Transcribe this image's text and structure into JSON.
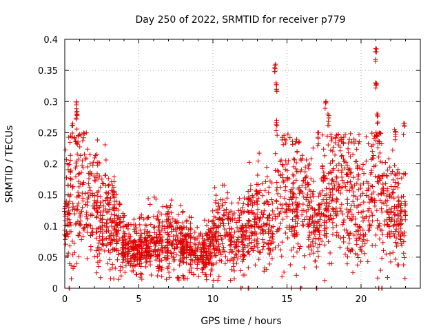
{
  "chart_data": {
    "type": "scatter",
    "title": "Day 250 of 2022, SRMTID for receiver p779",
    "xlabel": "GPS time / hours",
    "ylabel": "SRMTID / TECUs",
    "xlim": [
      0,
      24
    ],
    "ylim": [
      0,
      0.4
    ],
    "x_ticks": [
      0,
      5,
      10,
      15,
      20
    ],
    "y_ticks": [
      0,
      0.05,
      0.1,
      0.15,
      0.2,
      0.25,
      0.3,
      0.35,
      0.4
    ],
    "x_tick_labels": [
      "0",
      "5",
      "10",
      "15",
      "20"
    ],
    "y_tick_labels": [
      "0",
      "0.05",
      "0.1",
      "0.15",
      "0.2",
      "0.25",
      "0.3",
      "0.35",
      "0.4"
    ],
    "grid": true,
    "marker": "+",
    "color": "#dd0000",
    "trend": [
      [
        0.0,
        0.13
      ],
      [
        0.5,
        0.16
      ],
      [
        1.0,
        0.17
      ],
      [
        1.5,
        0.15
      ],
      [
        2.0,
        0.13
      ],
      [
        2.5,
        0.12
      ],
      [
        3.0,
        0.11
      ],
      [
        3.5,
        0.1
      ],
      [
        4.0,
        0.08
      ],
      [
        4.5,
        0.06
      ],
      [
        5.0,
        0.065
      ],
      [
        5.5,
        0.07
      ],
      [
        6.0,
        0.075
      ],
      [
        6.5,
        0.08
      ],
      [
        7.0,
        0.08
      ],
      [
        7.5,
        0.075
      ],
      [
        8.0,
        0.07
      ],
      [
        8.5,
        0.065
      ],
      [
        9.0,
        0.06
      ],
      [
        9.5,
        0.055
      ],
      [
        10.0,
        0.08
      ],
      [
        10.5,
        0.1
      ],
      [
        11.0,
        0.1
      ],
      [
        11.5,
        0.07
      ],
      [
        12.0,
        0.09
      ],
      [
        12.5,
        0.1
      ],
      [
        13.0,
        0.12
      ],
      [
        13.5,
        0.11
      ],
      [
        14.0,
        0.1
      ],
      [
        14.5,
        0.14
      ],
      [
        15.0,
        0.15
      ],
      [
        15.5,
        0.14
      ],
      [
        16.0,
        0.17
      ],
      [
        16.5,
        0.12
      ],
      [
        17.0,
        0.1
      ],
      [
        17.5,
        0.14
      ],
      [
        18.0,
        0.16
      ],
      [
        18.5,
        0.17
      ],
      [
        19.0,
        0.15
      ],
      [
        19.5,
        0.14
      ],
      [
        20.0,
        0.12
      ],
      [
        20.5,
        0.15
      ],
      [
        21.0,
        0.2
      ],
      [
        21.5,
        0.15
      ],
      [
        22.0,
        0.13
      ],
      [
        22.5,
        0.12
      ],
      [
        23.0,
        0.12
      ]
    ],
    "spikes": [
      {
        "x": 0.5,
        "y": 0.265
      },
      {
        "x": 0.8,
        "y": 0.3
      },
      {
        "x": 0.8,
        "y": 0.28
      },
      {
        "x": 14.2,
        "y": 0.36
      },
      {
        "x": 14.3,
        "y": 0.33
      },
      {
        "x": 14.3,
        "y": 0.27
      },
      {
        "x": 17.1,
        "y": 0.25
      },
      {
        "x": 17.6,
        "y": 0.3
      },
      {
        "x": 17.8,
        "y": 0.28
      },
      {
        "x": 21.0,
        "y": 0.385
      },
      {
        "x": 21.0,
        "y": 0.33
      },
      {
        "x": 21.1,
        "y": 0.28
      },
      {
        "x": 22.9,
        "y": 0.265
      },
      {
        "x": 22.3,
        "y": 0.255
      }
    ],
    "zero_markers_x": [
      0.3,
      11.9,
      12.4,
      15.3,
      15.9,
      17.0,
      21.2,
      21.4
    ],
    "point_count": 2000
  }
}
